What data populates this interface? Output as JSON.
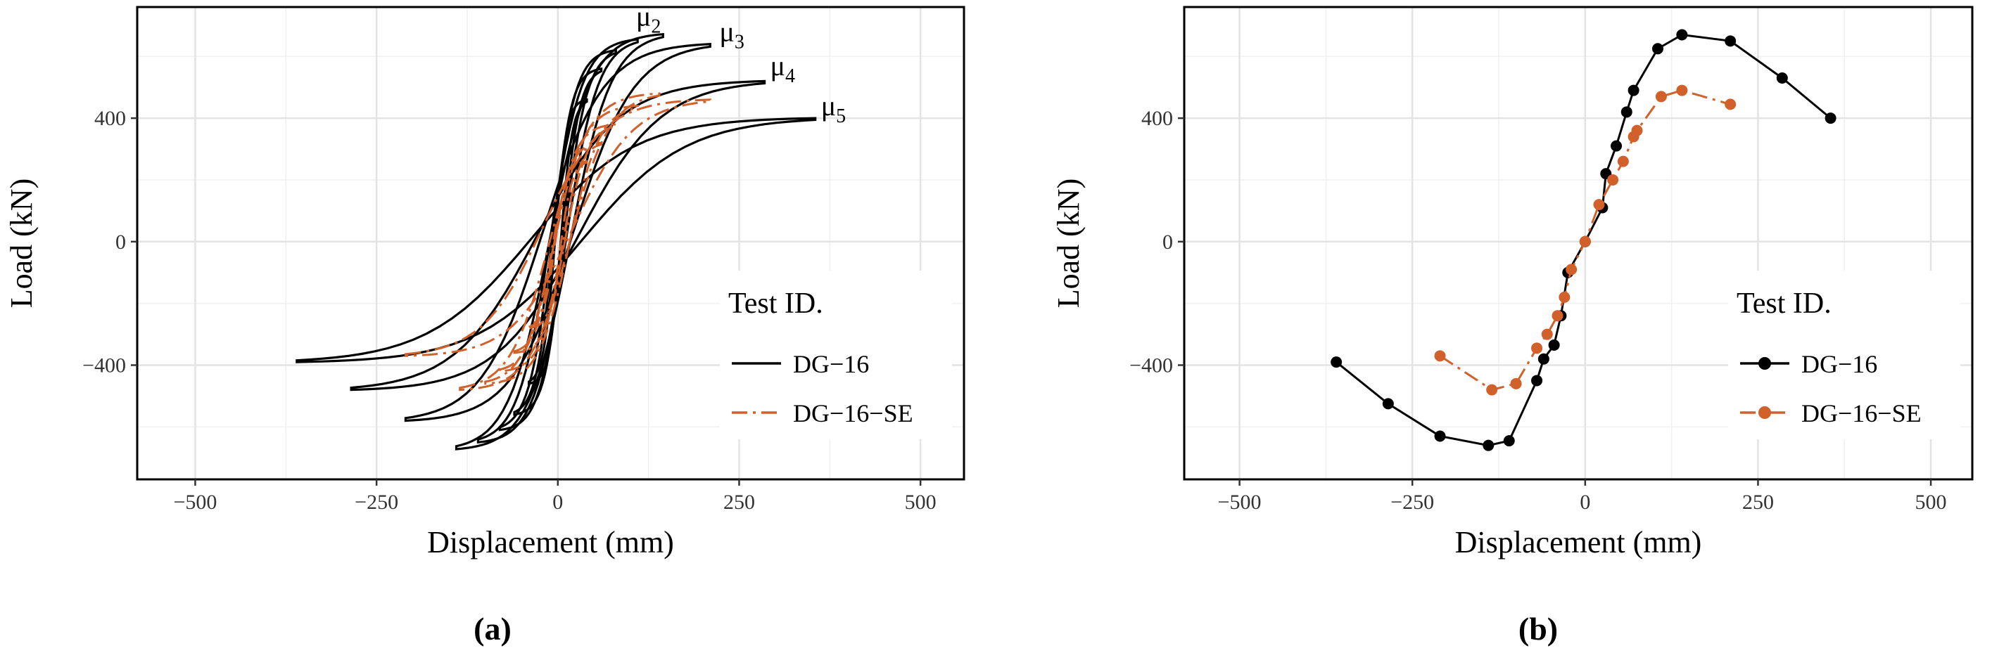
{
  "chart_data": [
    {
      "panel_label": "(a)",
      "type": "line",
      "xlabel": "Displacement (mm)",
      "ylabel": "Load (kN)",
      "xlim": [
        -580,
        560
      ],
      "ylim": [
        -770,
        760
      ],
      "x_ticks": [
        -500,
        -250,
        0,
        250,
        500
      ],
      "x_tick_labels": [
        "−500",
        "−250",
        "0",
        "250",
        "500"
      ],
      "y_ticks": [
        -400,
        0,
        400
      ],
      "y_tick_labels": [
        "−400",
        "0",
        "400"
      ],
      "grid": true,
      "legend": {
        "title": "Test ID.",
        "position": "bottom-right"
      },
      "series": [
        {
          "name": "DG−16",
          "color": "#000000",
          "style": "solid",
          "markers": false,
          "loops": [
            {
              "dmax": 40,
              "fmax": 460,
              "dmin": -40,
              "fmin": -460
            },
            {
              "dmax": 60,
              "fmax": 560,
              "dmin": -60,
              "fmin": -560
            },
            {
              "dmax": 80,
              "fmax": 620,
              "dmin": -80,
              "fmin": -610
            },
            {
              "dmax": 110,
              "fmax": 655,
              "dmin": -110,
              "fmin": -650
            },
            {
              "dmax": 145,
              "fmax": 672,
              "dmin": -140,
              "fmin": -672
            },
            {
              "dmax": 210,
              "fmax": 640,
              "dmin": -210,
              "fmin": -580
            },
            {
              "dmax": 285,
              "fmax": 520,
              "dmin": -285,
              "fmin": -480
            },
            {
              "dmax": 355,
              "fmax": 400,
              "dmin": -360,
              "fmin": -390
            }
          ]
        },
        {
          "name": "DG−16−SE",
          "color": "#d2602a",
          "style": "dashdot",
          "markers": false,
          "loops": [
            {
              "dmax": 40,
              "fmax": 260,
              "dmin": -40,
              "fmin": -280
            },
            {
              "dmax": 60,
              "fmax": 320,
              "dmin": -60,
              "fmin": -360
            },
            {
              "dmax": 80,
              "fmax": 380,
              "dmin": -80,
              "fmin": -420
            },
            {
              "dmax": 110,
              "fmax": 440,
              "dmin": -100,
              "fmin": -460
            },
            {
              "dmax": 140,
              "fmax": 480,
              "dmin": -135,
              "fmin": -480
            },
            {
              "dmax": 210,
              "fmax": 460,
              "dmin": -210,
              "fmin": -370
            }
          ]
        }
      ],
      "annotations": [
        {
          "base": "μ",
          "sub": "2",
          "x": 100,
          "y": 690
        },
        {
          "base": "μ",
          "sub": "3",
          "x": 215,
          "y": 640
        },
        {
          "base": "μ",
          "sub": "4",
          "x": 285,
          "y": 530
        },
        {
          "base": "μ",
          "sub": "5",
          "x": 355,
          "y": 400
        }
      ]
    },
    {
      "panel_label": "(b)",
      "type": "line",
      "xlabel": "Displacement (mm)",
      "ylabel": "Load (kN)",
      "xlim": [
        -580,
        560
      ],
      "ylim": [
        -770,
        760
      ],
      "x_ticks": [
        -500,
        -250,
        0,
        250,
        500
      ],
      "x_tick_labels": [
        "−500",
        "−250",
        "0",
        "250",
        "500"
      ],
      "y_ticks": [
        -400,
        0,
        400
      ],
      "y_tick_labels": [
        "−400",
        "0",
        "400"
      ],
      "grid": true,
      "legend": {
        "title": "Test ID.",
        "position": "bottom-right"
      },
      "series": [
        {
          "name": "DG−16",
          "color": "#000000",
          "style": "solid",
          "markers": true,
          "points": [
            [
              -360,
              -390
            ],
            [
              -285,
              -525
            ],
            [
              -210,
              -630
            ],
            [
              -140,
              -660
            ],
            [
              -110,
              -645
            ],
            [
              -70,
              -450
            ],
            [
              -60,
              -380
            ],
            [
              -45,
              -335
            ],
            [
              -35,
              -240
            ],
            [
              -25,
              -100
            ],
            [
              0,
              0
            ],
            [
              25,
              110
            ],
            [
              30,
              220
            ],
            [
              45,
              310
            ],
            [
              60,
              420
            ],
            [
              70,
              490
            ],
            [
              105,
              625
            ],
            [
              140,
              670
            ],
            [
              210,
              650
            ],
            [
              285,
              530
            ],
            [
              355,
              400
            ]
          ]
        },
        {
          "name": "DG−16−SE",
          "color": "#d2602a",
          "style": "dashdot",
          "markers": true,
          "points": [
            [
              -210,
              -370
            ],
            [
              -135,
              -480
            ],
            [
              -100,
              -460
            ],
            [
              -70,
              -345
            ],
            [
              -55,
              -300
            ],
            [
              -40,
              -240
            ],
            [
              -30,
              -180
            ],
            [
              -20,
              -90
            ],
            [
              0,
              0
            ],
            [
              20,
              120
            ],
            [
              40,
              200
            ],
            [
              55,
              260
            ],
            [
              70,
              340
            ],
            [
              75,
              360
            ],
            [
              110,
              470
            ],
            [
              140,
              490
            ],
            [
              210,
              445
            ]
          ]
        }
      ]
    }
  ]
}
